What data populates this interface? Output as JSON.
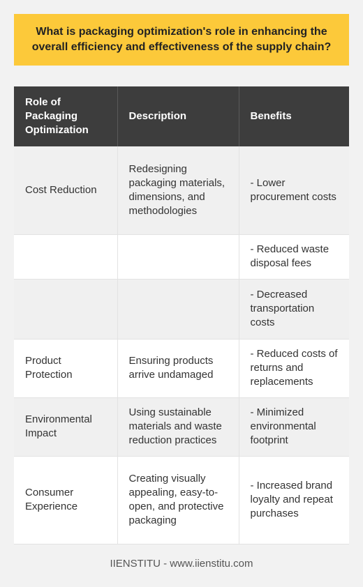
{
  "title": "What is packaging optimization's role in enhancing the overall efficiency and effectiveness of the supply chain?",
  "table": {
    "headers": [
      "Role of Packaging Optimization",
      "Description",
      "Benefits"
    ],
    "rows": [
      [
        "Cost Reduction",
        "Redesigning packaging materials, dimensions, and methodologies",
        "- Lower procurement costs"
      ],
      [
        "",
        "",
        "- Reduced waste disposal fees"
      ],
      [
        "",
        "",
        "- Decreased transportation costs"
      ],
      [
        "Product Protection",
        "Ensuring products arrive undamaged",
        "- Reduced costs of returns and replacements"
      ],
      [
        "Environmental Impact",
        "Using sustainable materials and waste reduction practices",
        "- Minimized environmental footprint"
      ],
      [
        "Consumer Experience",
        "Creating visually appealing, easy-to-open, and protective packaging",
        "- Increased brand loyalty and repeat purchases"
      ]
    ]
  },
  "footer": "IIENSTITU - www.iienstitu.com"
}
